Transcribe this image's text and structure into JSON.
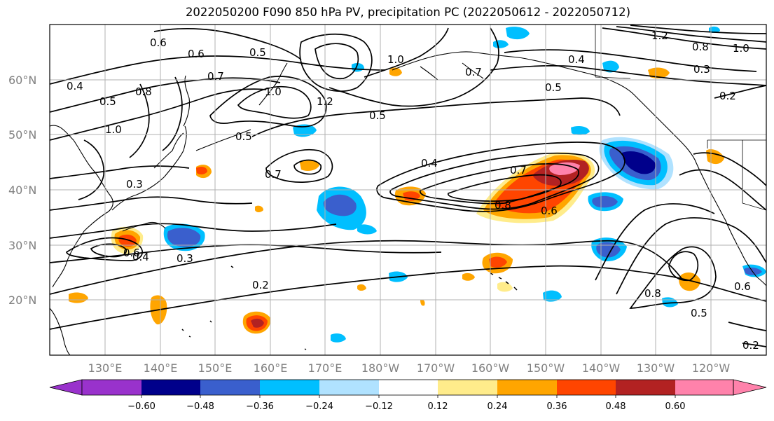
{
  "title": "2022050200 F090 850 hPa PV, precipitation PC (2022050612 - 2022050712)",
  "lat_labels": [
    "60°N",
    "50°N",
    "40°N",
    "30°N",
    "20°N"
  ],
  "lon_labels": [
    "130°E",
    "140°E",
    "150°E",
    "160°E",
    "170°E",
    "180°W",
    "170°W",
    "160°W",
    "150°W",
    "140°W",
    "130°W",
    "120°W"
  ],
  "colorbar": {
    "ticks": [
      "−0.60",
      "−0.48",
      "−0.36",
      "−0.24",
      "−0.12",
      "0.12",
      "0.24",
      "0.36",
      "0.48",
      "0.60"
    ],
    "colors": [
      "#9932cc",
      "#00008b",
      "#3a5fcd",
      "#00bfff",
      "#b0e2ff",
      "#ffffff",
      "#ffec8b",
      "#ffa500",
      "#ff4500",
      "#b22222",
      "#ff82ab"
    ]
  },
  "contour_labels": [
    "0.6",
    "0.6",
    "0.5",
    "0.4",
    "0.5",
    "0.8",
    "1.0",
    "0.7",
    "0.5",
    "1.0",
    "1.2",
    "0.4",
    "1.2",
    "0.8",
    "1.0",
    "0.3",
    "0.5",
    "0.2",
    "1.0",
    "0.5",
    "0.7",
    "0.7",
    "0.4",
    "0.7",
    "0.3",
    "0.8",
    "0.6",
    "0.6",
    "0.4",
    "0.3",
    "0.2",
    "0.8",
    "0.5",
    "0.6",
    "0.2"
  ]
}
